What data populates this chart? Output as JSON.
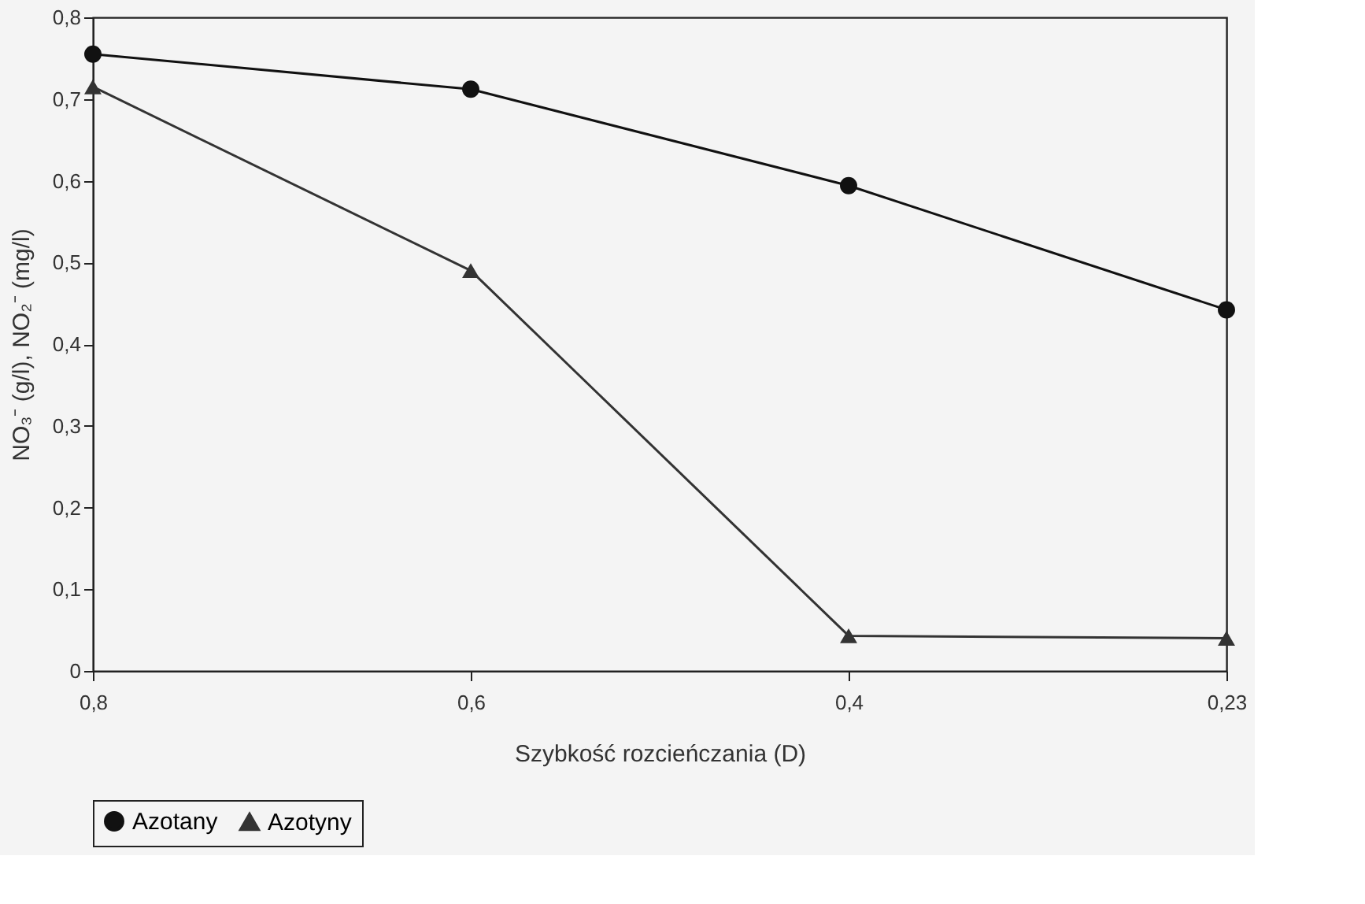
{
  "chart_data": {
    "type": "line",
    "xlabel": "Szybkość rozcieńczania (D)",
    "ylabel": "NO₃⁻ (g/l), NO₂⁻ (mg/l)",
    "categories": [
      "0,8",
      "0,6",
      "0,4",
      "0,23"
    ],
    "ylim": [
      0,
      0.8
    ],
    "yticks": [
      {
        "value": 0,
        "label": "0"
      },
      {
        "value": 0.1,
        "label": "0,1"
      },
      {
        "value": 0.2,
        "label": "0,2"
      },
      {
        "value": 0.3,
        "label": "0,3"
      },
      {
        "value": 0.4,
        "label": "0,4"
      },
      {
        "value": 0.5,
        "label": "0,5"
      },
      {
        "value": 0.6,
        "label": "0,6"
      },
      {
        "value": 0.7,
        "label": "0,7"
      },
      {
        "value": 0.8,
        "label": "0,8"
      }
    ],
    "grid": false,
    "legend": "bottom",
    "line_style": "solid",
    "series": [
      {
        "name": "Azotany",
        "color": "#111111",
        "marker": "circle",
        "values": [
          0.755,
          0.712,
          0.594,
          0.442
        ]
      },
      {
        "name": "Azotyny",
        "color": "#333333",
        "marker": "triangle",
        "values": [
          0.715,
          0.49,
          0.043,
          0.04
        ]
      }
    ]
  }
}
